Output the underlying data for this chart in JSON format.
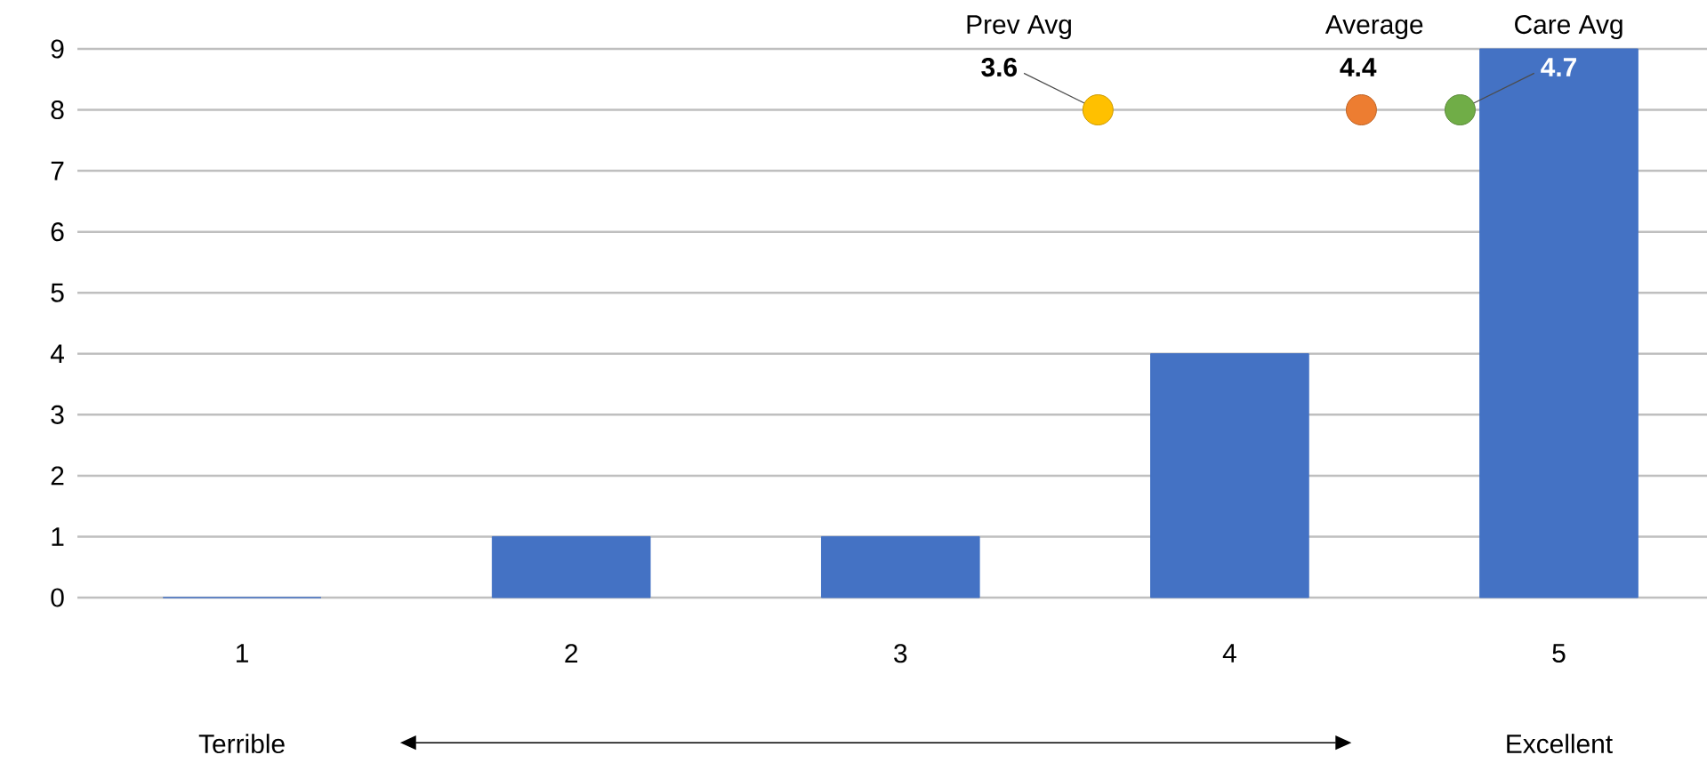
{
  "chart_data": {
    "type": "bar",
    "x": [
      1,
      2,
      3,
      4,
      5
    ],
    "xlim": [
      0.5,
      5.45
    ],
    "xticks": [
      1,
      2,
      3,
      4,
      5
    ],
    "ylim": [
      0,
      9
    ],
    "yticks": [
      0,
      1,
      2,
      3,
      4,
      5,
      6,
      7,
      8,
      9
    ],
    "grid": "y",
    "marker": "circle",
    "series": [
      {
        "color": "#4472c4",
        "values": [
          0,
          1,
          1,
          4,
          9
        ]
      },
      {
        "type": "scatter",
        "name": "Prev Avg",
        "color": "#ffc000",
        "x": [
          3.6
        ],
        "values": [
          8
        ]
      },
      {
        "type": "scatter",
        "name": "Average",
        "color": "#ed7d31",
        "x": [
          4.4
        ],
        "values": [
          8
        ]
      },
      {
        "type": "scatter",
        "name": "Care Avg",
        "color": "#70ad47",
        "x": [
          4.7
        ],
        "values": [
          8
        ]
      }
    ],
    "annotations": [
      {
        "text": "3.6",
        "x": 3.6,
        "y": 8
      },
      {
        "text": "4.4",
        "x": 4.4,
        "y": 8
      },
      {
        "text": "4.7",
        "x": 4.7,
        "y": 8
      },
      "Terrible",
      "Excellent"
    ]
  }
}
